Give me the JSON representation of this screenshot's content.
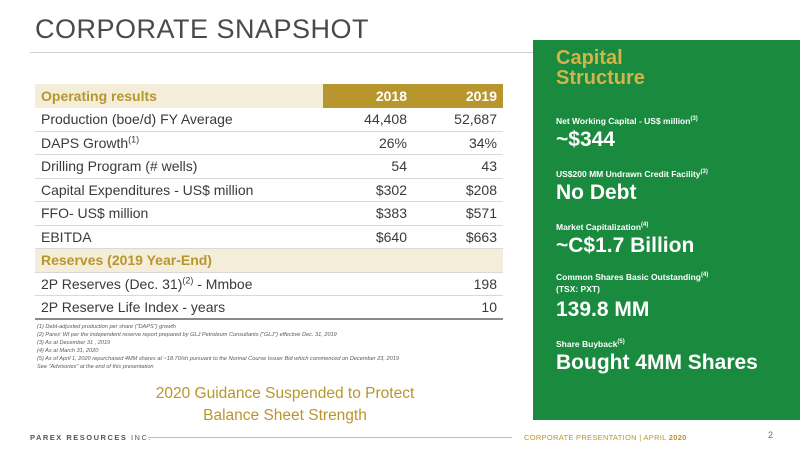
{
  "title": "CORPORATE SNAPSHOT",
  "table": {
    "header": {
      "label": "Operating results",
      "col1": "2018",
      "col2": "2019"
    },
    "rows": [
      {
        "label": "Production (boe/d)  FY Average",
        "sup": "",
        "suffix": "",
        "v2018": "44,408",
        "v2019": "52,687"
      },
      {
        "label": "DAPS Growth",
        "sup": "(1)",
        "suffix": "",
        "v2018": "26%",
        "v2019": "34%"
      },
      {
        "label": "Drilling Program (# wells)",
        "sup": "",
        "suffix": "",
        "v2018": "54",
        "v2019": "43"
      },
      {
        "label": "Capital Expenditures - US$ million",
        "sup": "",
        "suffix": "",
        "v2018": "$302",
        "v2019": "$208"
      },
      {
        "label": "FFO- US$ million",
        "sup": "",
        "suffix": "",
        "v2018": "$383",
        "v2019": "$571"
      },
      {
        "label": "EBITDA",
        "sup": "",
        "suffix": "",
        "v2018": "$640",
        "v2019": "$663"
      }
    ],
    "reserves_header": "Reserves (2019 Year-End)",
    "reserves": [
      {
        "label": "2P Reserves (Dec. 31)",
        "sup": "(2)",
        "suffix": " - Mmboe",
        "value": "198"
      },
      {
        "label": "2P Reserve Life Index - years",
        "sup": "",
        "suffix": "",
        "value": "10"
      }
    ]
  },
  "footnotes": [
    "(1)  Debt-adjusted production per share (\"DAPS\") growth",
    "(2)  Parex' WI per the independent reserve report prepared by GLJ Petroleum Consultants (\"GLJ\") effective  Dec. 31, 2019",
    "(3)  As at December 31 , 2019",
    "(4)  As at March 31, 2020",
    "(5)  As of April 1, 2020 repurchased 4MM shares at ~18.70/sh pursuant to the Normal Course Issuer Bid  which commenced on December 23, 2019",
    "See \"Advisories\" at the end of this presentation"
  ],
  "guidance": {
    "line1": "2020 Guidance Suspended to Protect",
    "line2": "Balance Sheet Strength"
  },
  "capital": {
    "heading_line1": "Capital",
    "heading_line2": "Structure",
    "items": [
      {
        "label": "Net Working Capital  - US$ million",
        "label2": "",
        "sup": "(3)",
        "value": "~$344"
      },
      {
        "label": "US$200 MM Undrawn Credit Facility",
        "label2": "",
        "sup": "(3)",
        "value": "No Debt"
      },
      {
        "label": "Market Capitalization",
        "label2": "",
        "sup": "(4)",
        "value": "~C$1.7 Billion"
      },
      {
        "label": "Common Shares Basic Outstanding",
        "label2": "(TSX: PXT)",
        "sup": "(4)",
        "value": "139.8 MM"
      },
      {
        "label": "Share Buyback",
        "label2": "",
        "sup": "(5)",
        "value": "Bought 4MM Shares"
      }
    ]
  },
  "footer": {
    "brand": "PAREX RESOURCES",
    "brand_suffix": " INC.",
    "presentation": "CORPORATE PRESENTATION  |  APRIL ",
    "year": "2020",
    "page": "2"
  },
  "colors": {
    "gold": "#b8962e",
    "green": "#1a8a3e",
    "gold_light": "#d4b44a"
  }
}
